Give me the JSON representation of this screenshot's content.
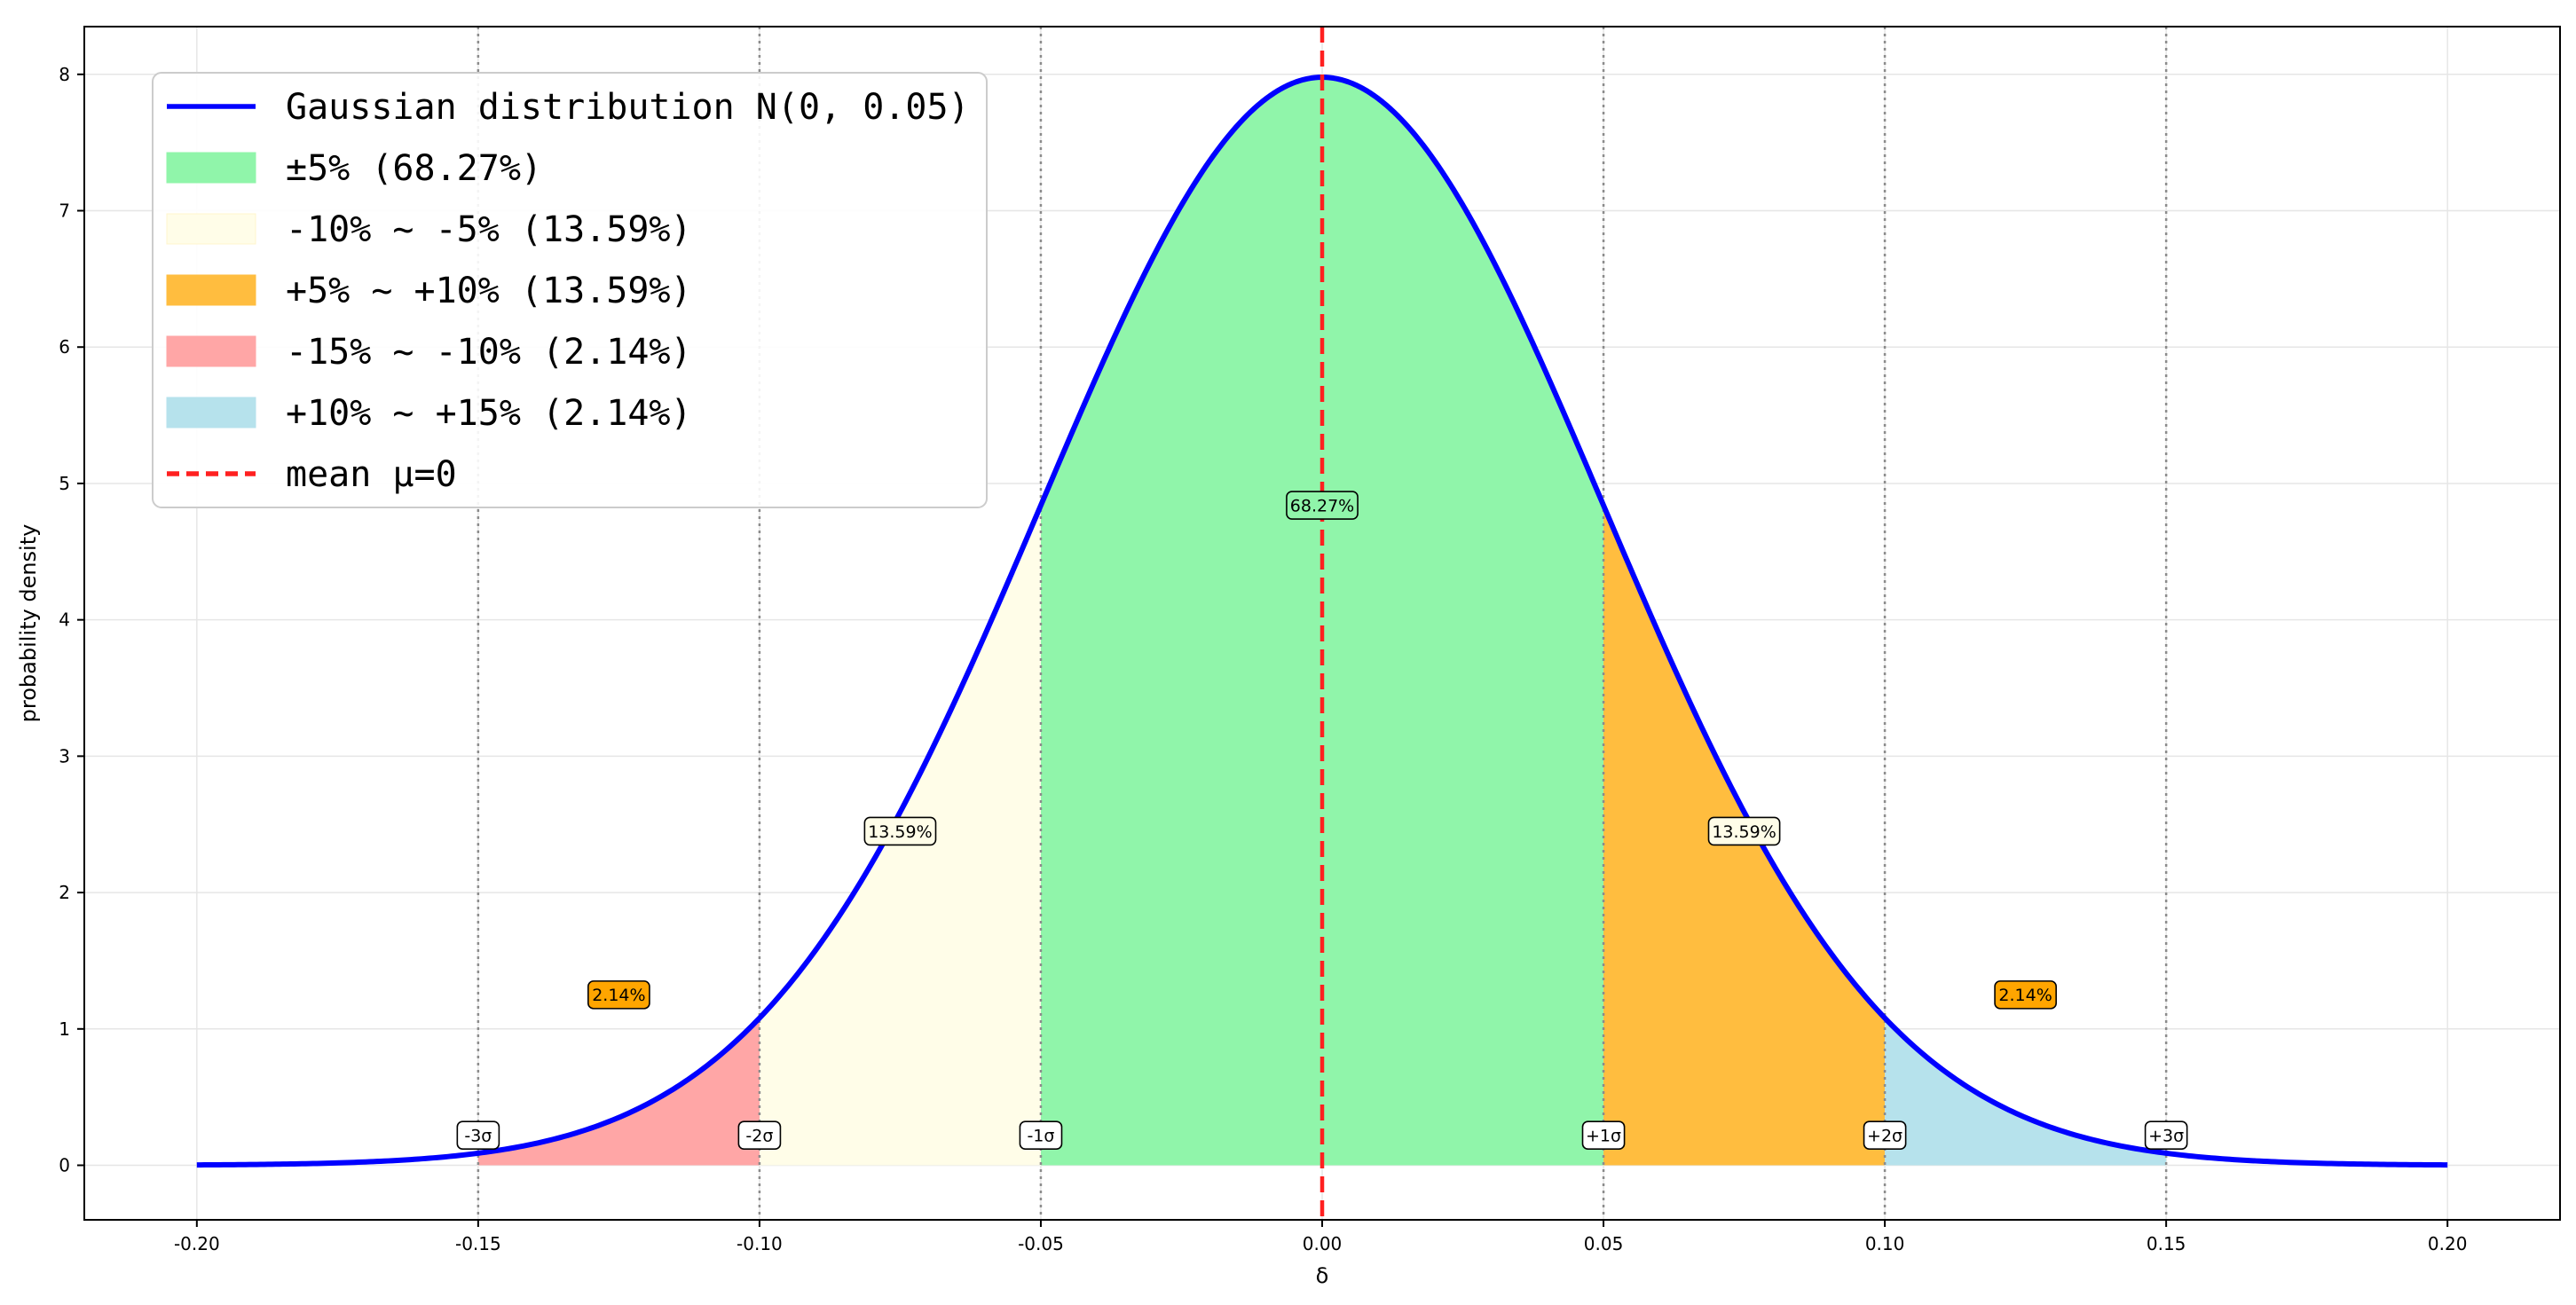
{
  "chart_data": {
    "type": "area",
    "title": "",
    "xlabel": "δ",
    "ylabel": "probability density",
    "xlim": [
      -0.22,
      0.22
    ],
    "ylim": [
      -0.4,
      8.35
    ],
    "x_ticks": [
      -0.2,
      -0.15,
      -0.1,
      -0.05,
      0.0,
      0.05,
      0.1,
      0.15,
      0.2
    ],
    "x_tick_labels": [
      "-0.20",
      "-0.15",
      "-0.10",
      "-0.05",
      "0.00",
      "0.05",
      "0.10",
      "0.15",
      "0.20"
    ],
    "y_ticks": [
      0,
      1,
      2,
      3,
      4,
      5,
      6,
      7,
      8
    ],
    "y_tick_labels": [
      "0",
      "1",
      "2",
      "3",
      "4",
      "5",
      "6",
      "7",
      "8"
    ],
    "grid": true,
    "legend_position": "top-left",
    "curve": {
      "name": "Gaussian distribution N(0, 0.05)",
      "mean": 0,
      "sd": 0.05,
      "x_range": [
        -0.2,
        0.2
      ],
      "color": "#0000ff"
    },
    "regions": [
      {
        "name": "±5%  (68.27%)",
        "from": -0.05,
        "to": 0.05,
        "color": "#90f5aa"
      },
      {
        "name": "-10% ~ -5% (13.59%)",
        "from": -0.1,
        "to": -0.05,
        "color": "#fffde8"
      },
      {
        "name": "+5% ~ +10% (13.59%)",
        "from": 0.05,
        "to": 0.1,
        "color": "#ffbd3f"
      },
      {
        "name": "-15% ~ -10% (2.14%)",
        "from": -0.15,
        "to": -0.1,
        "color": "#ffa6a6"
      },
      {
        "name": "+10% ~ +15% (2.14%)",
        "from": 0.1,
        "to": 0.15,
        "color": "#b6e2ec"
      }
    ],
    "mean_line": {
      "name": "mean μ=0",
      "x": 0,
      "color": "#ff2020"
    },
    "sigma_lines": [
      -0.15,
      -0.1,
      -0.05,
      0.05,
      0.1,
      0.15
    ],
    "sigma_labels": [
      {
        "x": -0.15,
        "y": 0.22,
        "text": "-3σ"
      },
      {
        "x": -0.1,
        "y": 0.22,
        "text": "-2σ"
      },
      {
        "x": -0.05,
        "y": 0.22,
        "text": "-1σ"
      },
      {
        "x": 0.05,
        "y": 0.22,
        "text": "+1σ"
      },
      {
        "x": 0.1,
        "y": 0.22,
        "text": "+2σ"
      },
      {
        "x": 0.15,
        "y": 0.22,
        "text": "+3σ"
      }
    ],
    "percent_labels": [
      {
        "x": 0.0,
        "y": 4.84,
        "text": "68.27%",
        "color": "#90f5aa"
      },
      {
        "x": -0.075,
        "y": 2.45,
        "text": "13.59%",
        "color": "#fffde8"
      },
      {
        "x": 0.075,
        "y": 2.45,
        "text": "13.59%",
        "color": "#fffde8"
      },
      {
        "x": -0.125,
        "y": 1.25,
        "text": "2.14%",
        "color": "#ffa500"
      },
      {
        "x": 0.125,
        "y": 1.25,
        "text": "2.14%",
        "color": "#ffa500"
      }
    ]
  }
}
